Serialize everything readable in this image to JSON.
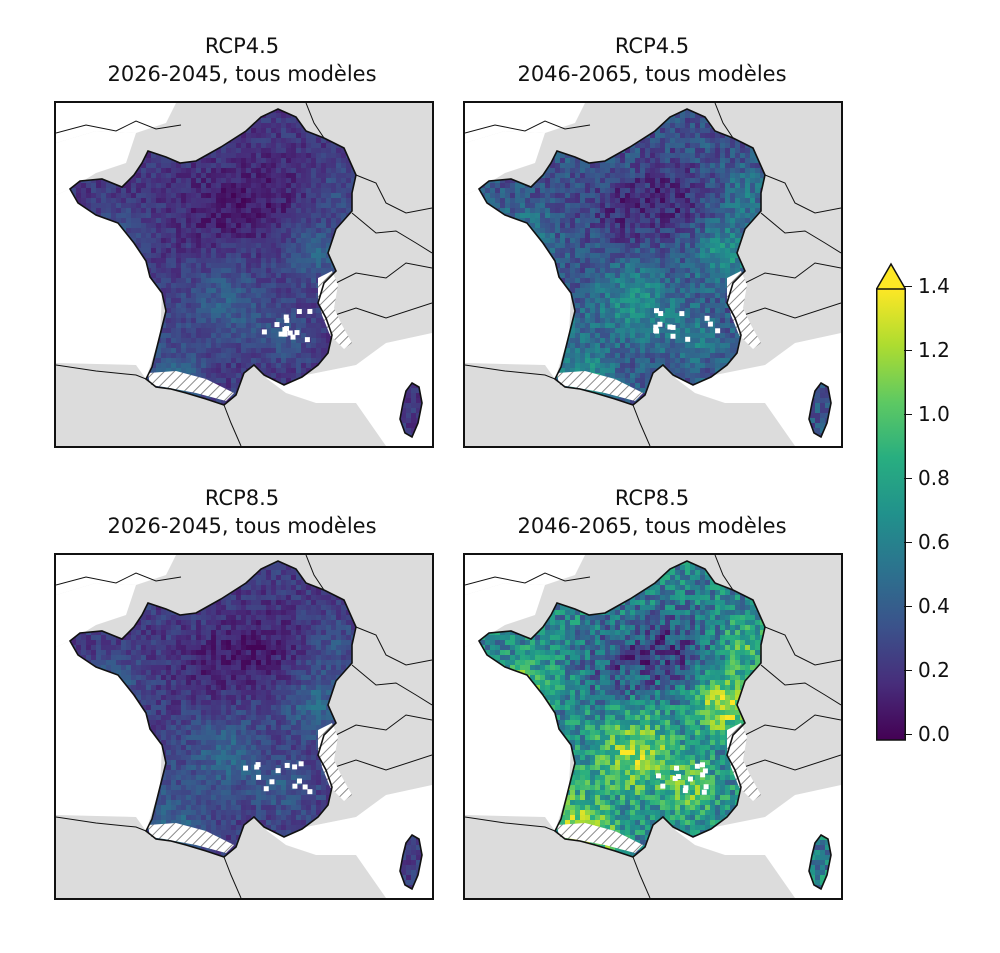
{
  "figure": {
    "panels": [
      {
        "scenario": "RCP4.5",
        "period": "2026-2045, tous modèles",
        "mean": 0.22,
        "seed": 11
      },
      {
        "scenario": "RCP4.5",
        "period": "2046-2065, tous modèles",
        "mean": 0.36,
        "seed": 23
      },
      {
        "scenario": "RCP8.5",
        "period": "2026-2045, tous modèles",
        "mean": 0.24,
        "seed": 37
      },
      {
        "scenario": "RCP8.5",
        "period": "2046-2065, tous modèles",
        "mean": 0.62,
        "seed": 51
      }
    ]
  },
  "colorbar": {
    "min": 0.0,
    "max": 1.4,
    "extend": "max",
    "ticks": [
      "0.0",
      "0.2",
      "0.4",
      "0.6",
      "0.8",
      "1.0",
      "1.2",
      "1.4"
    ],
    "colors": [
      "#440154",
      "#472d7b",
      "#3b528b",
      "#2c728e",
      "#21918c",
      "#28ae80",
      "#5ec962",
      "#addc30",
      "#fde725"
    ]
  },
  "colors": {
    "land_outside": "#dcdcdc",
    "sea": "#ffffff",
    "border": "#111111",
    "hatch": "#8a8a8a"
  }
}
